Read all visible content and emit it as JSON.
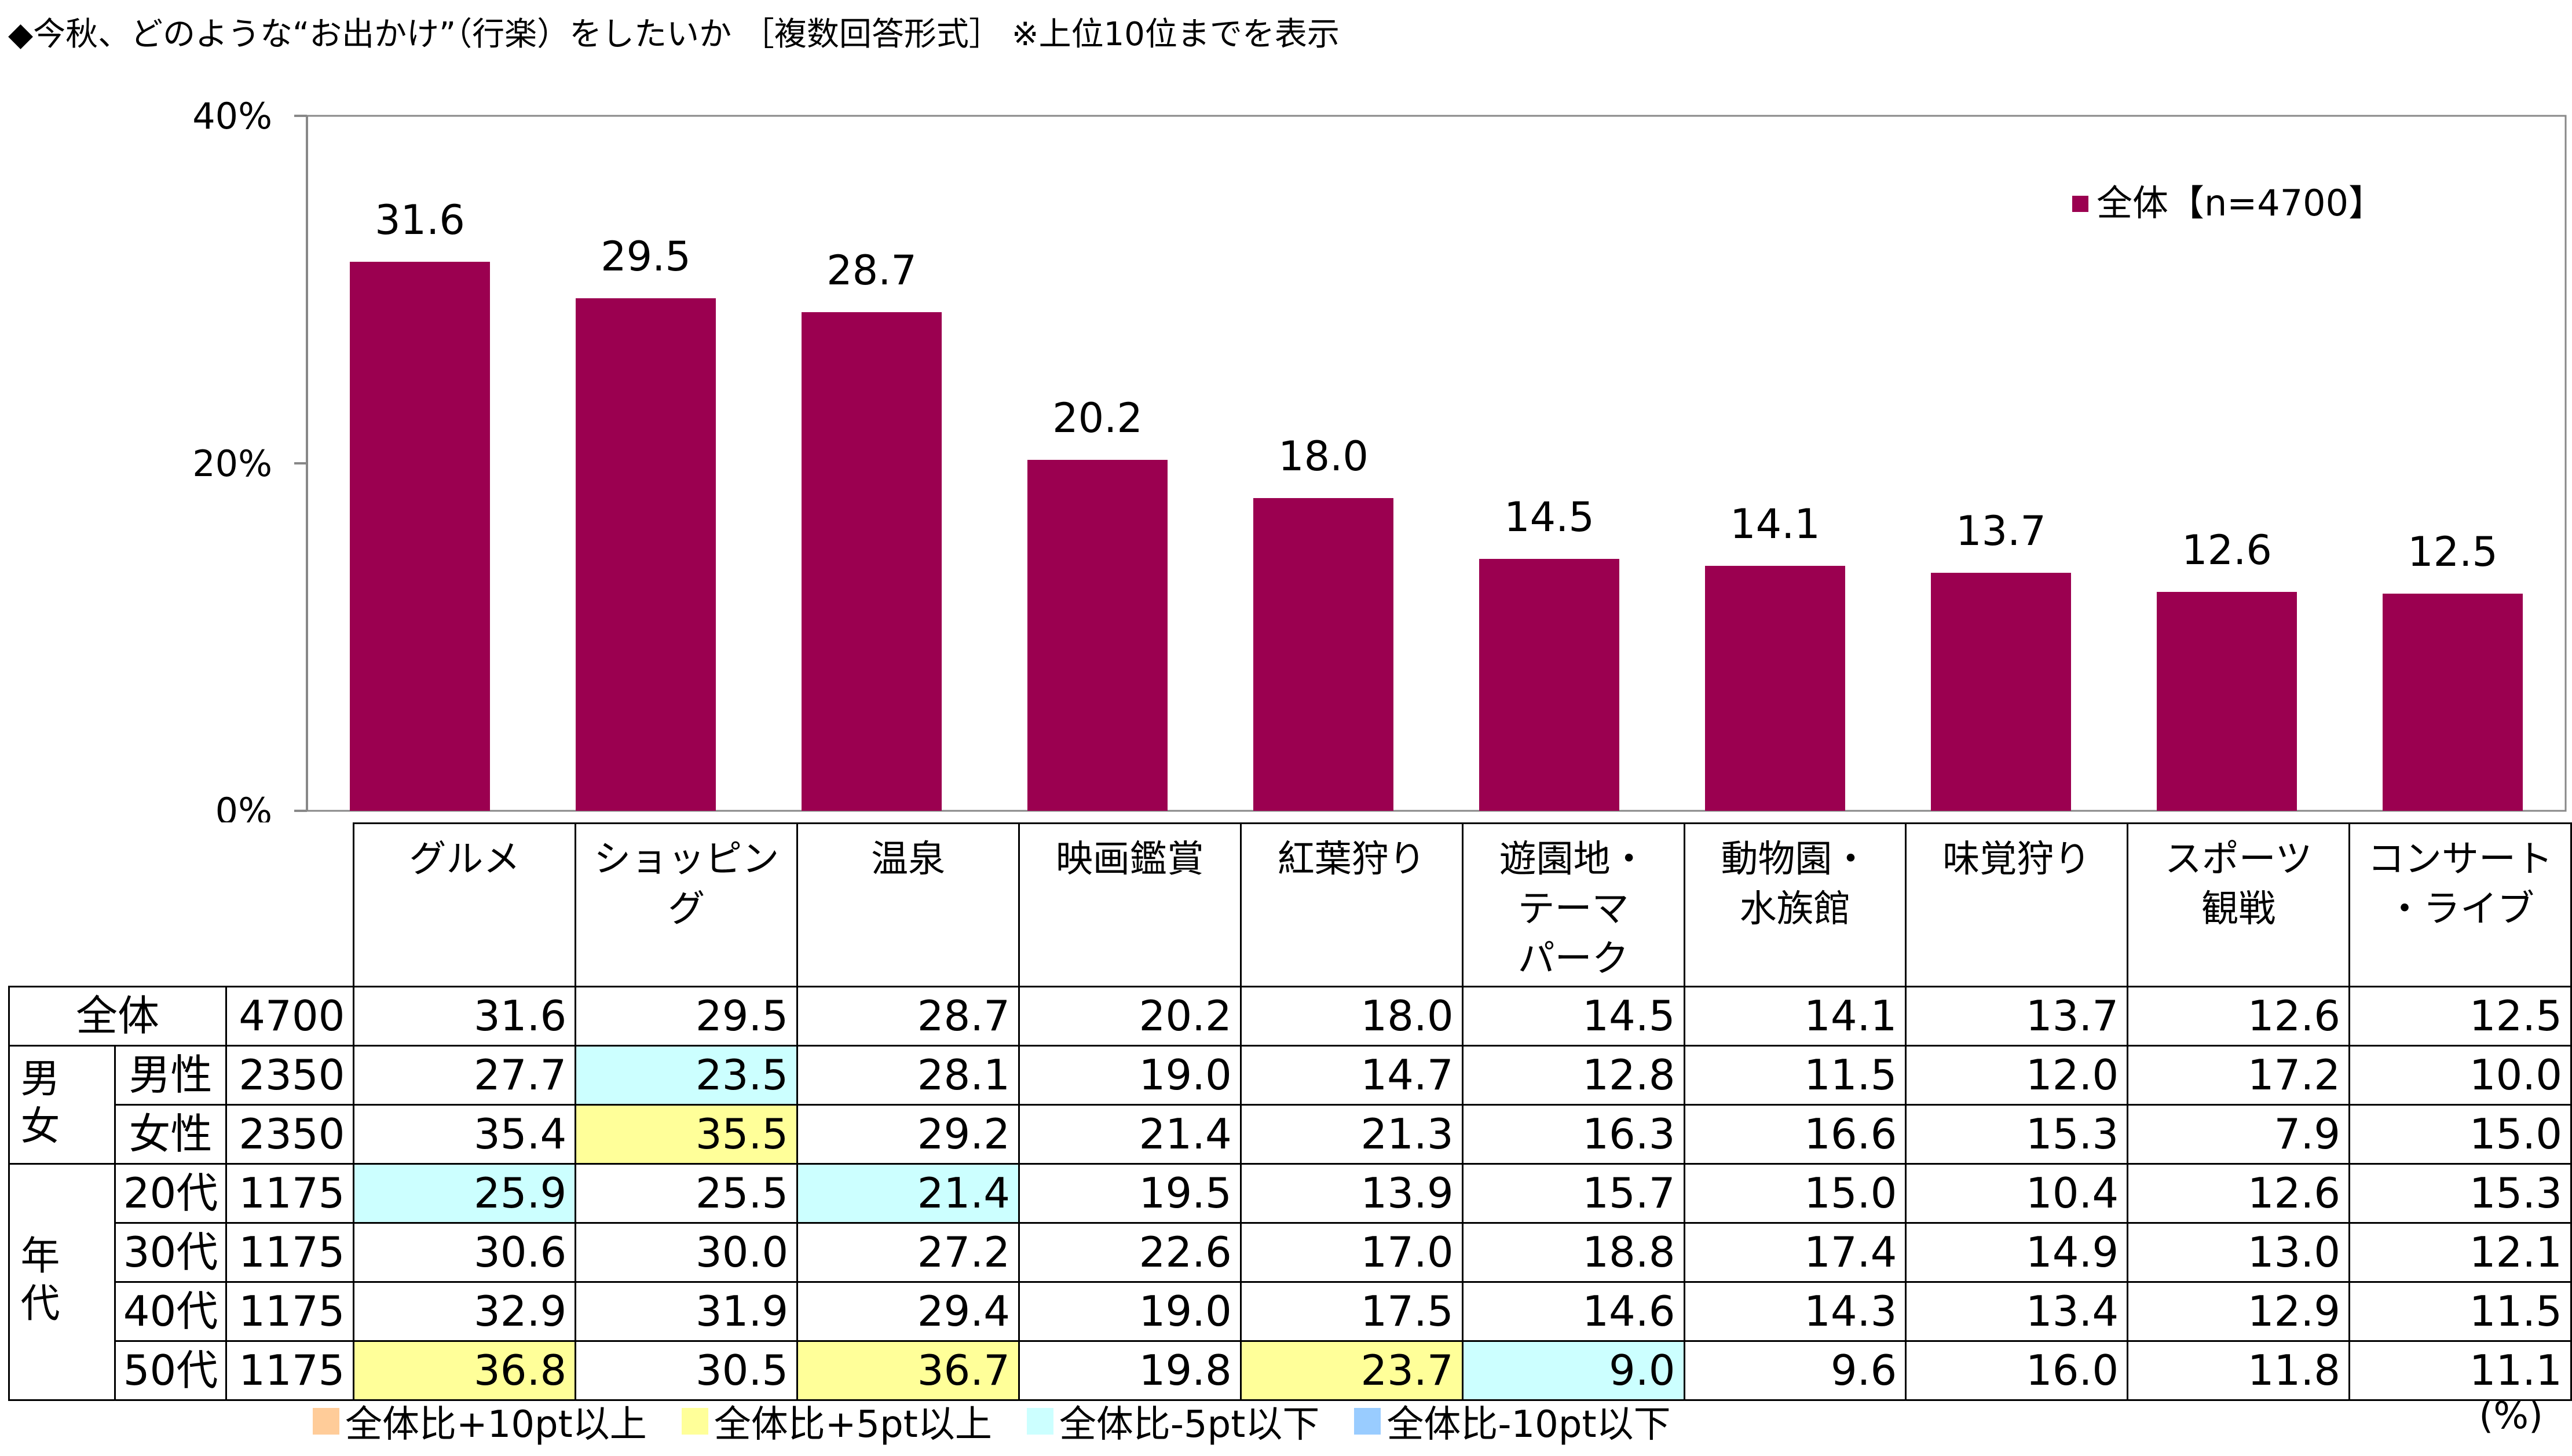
{
  "title": "◆今秋、どのような“お出かけ”（行楽）をしたいか ［複数回答形式］ ※上位10位までを表示",
  "colors": {
    "bar": "#9b0050",
    "plus10": "#ffcc99",
    "plus5": "#ffff99",
    "minus5": "#ccffff",
    "minus10": "#99ccff"
  },
  "chart_data": {
    "type": "bar",
    "categories": [
      "グルメ",
      "ショッピング",
      "温泉",
      "映画鑑賞",
      "紅葉狩り",
      "遊園地・\nテーマ\nパーク",
      "動物園・\n水族館",
      "味覚狩り",
      "スポーツ\n観戦",
      "コンサート\n・ライブ"
    ],
    "series": [
      {
        "name": "全体【n=4700】",
        "values": [
          31.6,
          29.5,
          28.7,
          20.2,
          18.0,
          14.5,
          14.1,
          13.7,
          12.6,
          12.5
        ]
      }
    ],
    "value_labels": [
      "31.6",
      "29.5",
      "28.7",
      "20.2",
      "18.0",
      "14.5",
      "14.1",
      "13.7",
      "12.6",
      "12.5"
    ],
    "ylim": [
      0,
      40
    ],
    "yticks": [
      "0%",
      "20%",
      "40%"
    ],
    "legend_position": "top-right",
    "grid": false
  },
  "table": {
    "rows": [
      {
        "group": "",
        "label": "全体",
        "n": "4700",
        "values": [
          "31.6",
          "29.5",
          "28.7",
          "20.2",
          "18.0",
          "14.5",
          "14.1",
          "13.7",
          "12.6",
          "12.5"
        ],
        "highlights": [
          "",
          "",
          "",
          "",
          "",
          "",
          "",
          "",
          "",
          ""
        ]
      },
      {
        "group": "男女",
        "label": "男性",
        "n": "2350",
        "values": [
          "27.7",
          "23.5",
          "28.1",
          "19.0",
          "14.7",
          "12.8",
          "11.5",
          "12.0",
          "17.2",
          "10.0"
        ],
        "highlights": [
          "",
          "m5",
          "",
          "",
          "",
          "",
          "",
          "",
          "",
          ""
        ]
      },
      {
        "group": "男女",
        "label": "女性",
        "n": "2350",
        "values": [
          "35.4",
          "35.5",
          "29.2",
          "21.4",
          "21.3",
          "16.3",
          "16.6",
          "15.3",
          "7.9",
          "15.0"
        ],
        "highlights": [
          "",
          "p5",
          "",
          "",
          "",
          "",
          "",
          "",
          "",
          ""
        ]
      },
      {
        "group": "年代",
        "label": "20代",
        "n": "1175",
        "values": [
          "25.9",
          "25.5",
          "21.4",
          "19.5",
          "13.9",
          "15.7",
          "15.0",
          "10.4",
          "12.6",
          "15.3"
        ],
        "highlights": [
          "m5",
          "",
          "m5",
          "",
          "",
          "",
          "",
          "",
          "",
          ""
        ]
      },
      {
        "group": "年代",
        "label": "30代",
        "n": "1175",
        "values": [
          "30.6",
          "30.0",
          "27.2",
          "22.6",
          "17.0",
          "18.8",
          "17.4",
          "14.9",
          "13.0",
          "12.1"
        ],
        "highlights": [
          "",
          "",
          "",
          "",
          "",
          "",
          "",
          "",
          "",
          ""
        ]
      },
      {
        "group": "年代",
        "label": "40代",
        "n": "1175",
        "values": [
          "32.9",
          "31.9",
          "29.4",
          "19.0",
          "17.5",
          "14.6",
          "14.3",
          "13.4",
          "12.9",
          "11.5"
        ],
        "highlights": [
          "",
          "",
          "",
          "",
          "",
          "",
          "",
          "",
          "",
          ""
        ]
      },
      {
        "group": "年代",
        "label": "50代",
        "n": "1175",
        "values": [
          "36.8",
          "30.5",
          "36.7",
          "19.8",
          "23.7",
          "9.0",
          "9.6",
          "16.0",
          "11.8",
          "11.1"
        ],
        "highlights": [
          "p5",
          "",
          "p5",
          "",
          "p5",
          "m5",
          "",
          "",
          "",
          ""
        ]
      }
    ],
    "group_labels": {
      "gender": "男女",
      "age": "年代"
    }
  },
  "legend_bottom": [
    {
      "label": "全体比+10pt以上",
      "key": "plus10"
    },
    {
      "label": "全体比+5pt以上",
      "key": "plus5"
    },
    {
      "label": "全体比-5pt以下",
      "key": "minus5"
    },
    {
      "label": "全体比-10pt以下",
      "key": "minus10"
    }
  ],
  "unit": "(%)"
}
